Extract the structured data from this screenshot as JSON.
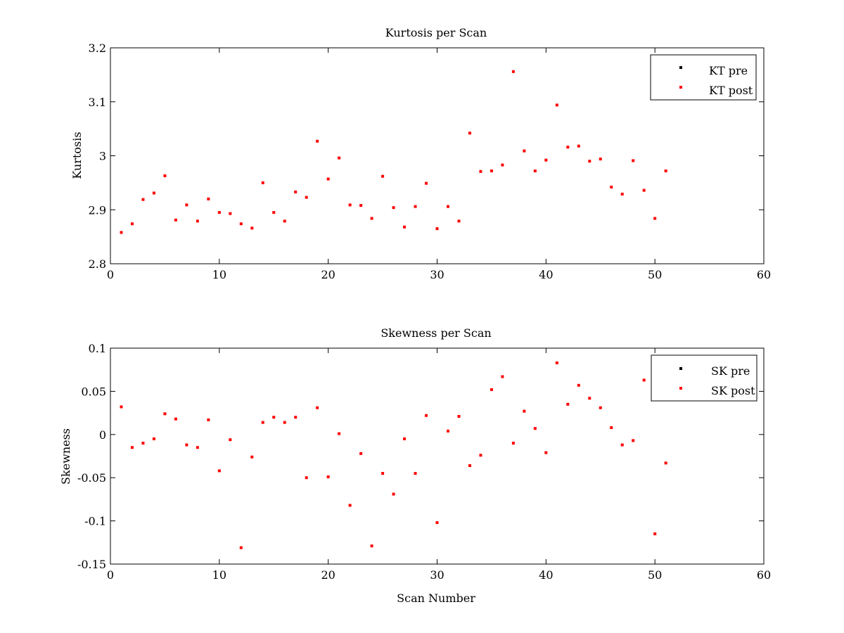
{
  "chart_data": [
    {
      "type": "scatter",
      "title": "Kurtosis per Scan",
      "xlabel": "",
      "ylabel": "Kurtosis",
      "xlim": [
        0,
        60
      ],
      "ylim": [
        2.8,
        3.2
      ],
      "xticks": [
        0,
        10,
        20,
        30,
        40,
        50,
        60
      ],
      "xtick_labels": [
        "0",
        "10",
        "20",
        "30",
        "40",
        "50",
        "60"
      ],
      "yticks": [
        2.8,
        2.9,
        3.0,
        3.1,
        3.2
      ],
      "ytick_labels": [
        "2.8",
        "2.9",
        "3",
        "3.1",
        "3.2"
      ],
      "grid": false,
      "legend_position": "top-right",
      "legend": [
        {
          "label": "KT pre",
          "color": "#000000"
        },
        {
          "label": "KT post",
          "color": "#ff0000"
        }
      ],
      "series": [
        {
          "name": "KT post",
          "color": "#ff0000",
          "x": [
            1,
            2,
            3,
            4,
            5,
            6,
            7,
            8,
            9,
            10,
            11,
            12,
            13,
            14,
            15,
            16,
            17,
            18,
            19,
            20,
            21,
            22,
            23,
            24,
            25,
            26,
            27,
            28,
            29,
            30,
            31,
            32,
            33,
            34,
            35,
            36,
            37,
            38,
            39,
            40,
            41,
            42,
            43,
            44,
            45,
            46,
            47,
            48,
            49,
            50,
            51
          ],
          "y": [
            2.858,
            2.874,
            2.919,
            2.931,
            2.963,
            2.881,
            2.909,
            2.879,
            2.92,
            2.895,
            2.893,
            2.874,
            2.866,
            2.95,
            2.895,
            2.879,
            2.933,
            2.923,
            3.027,
            2.957,
            2.996,
            2.909,
            2.908,
            2.884,
            2.962,
            2.904,
            2.868,
            2.906,
            2.949,
            2.865,
            2.906,
            2.879,
            3.042,
            2.971,
            2.972,
            2.983,
            3.156,
            3.009,
            2.972,
            2.992,
            3.094,
            3.016,
            3.018,
            2.99,
            2.994,
            2.942,
            2.929,
            2.991,
            2.936,
            2.884,
            2.972
          ]
        }
      ]
    },
    {
      "type": "scatter",
      "title": "Skewness per Scan",
      "xlabel": "Scan Number",
      "ylabel": "Skewness",
      "xlim": [
        0,
        60
      ],
      "ylim": [
        -0.15,
        0.1
      ],
      "xticks": [
        0,
        10,
        20,
        30,
        40,
        50,
        60
      ],
      "xtick_labels": [
        "0",
        "10",
        "20",
        "30",
        "40",
        "50",
        "60"
      ],
      "yticks": [
        -0.15,
        -0.1,
        -0.05,
        0,
        0.05,
        0.1
      ],
      "ytick_labels": [
        "-0.15",
        "-0.1",
        "-0.05",
        "0",
        "0.05",
        "0.1"
      ],
      "grid": false,
      "legend_position": "top-right",
      "legend": [
        {
          "label": "SK pre",
          "color": "#000000"
        },
        {
          "label": "SK post",
          "color": "#ff0000"
        }
      ],
      "series": [
        {
          "name": "SK post",
          "color": "#ff0000",
          "x": [
            1,
            2,
            3,
            4,
            5,
            6,
            7,
            8,
            9,
            10,
            11,
            12,
            13,
            14,
            15,
            16,
            17,
            18,
            19,
            20,
            21,
            22,
            23,
            24,
            25,
            26,
            27,
            28,
            29,
            30,
            31,
            32,
            33,
            34,
            35,
            36,
            37,
            38,
            39,
            40,
            41,
            42,
            43,
            44,
            45,
            46,
            47,
            48,
            49,
            50,
            51
          ],
          "y": [
            0.032,
            -0.015,
            -0.01,
            -0.005,
            0.024,
            0.018,
            -0.012,
            -0.015,
            0.017,
            -0.042,
            -0.006,
            -0.131,
            -0.026,
            0.014,
            0.02,
            0.014,
            0.02,
            -0.05,
            0.031,
            -0.049,
            0.001,
            -0.082,
            -0.022,
            -0.129,
            -0.045,
            -0.069,
            -0.005,
            -0.045,
            0.022,
            -0.102,
            0.004,
            0.021,
            -0.036,
            -0.024,
            0.052,
            0.067,
            -0.01,
            0.027,
            0.007,
            -0.021,
            0.083,
            0.035,
            0.057,
            0.042,
            0.031,
            0.008,
            -0.012,
            -0.007,
            0.063,
            -0.115,
            -0.033
          ]
        }
      ]
    }
  ]
}
